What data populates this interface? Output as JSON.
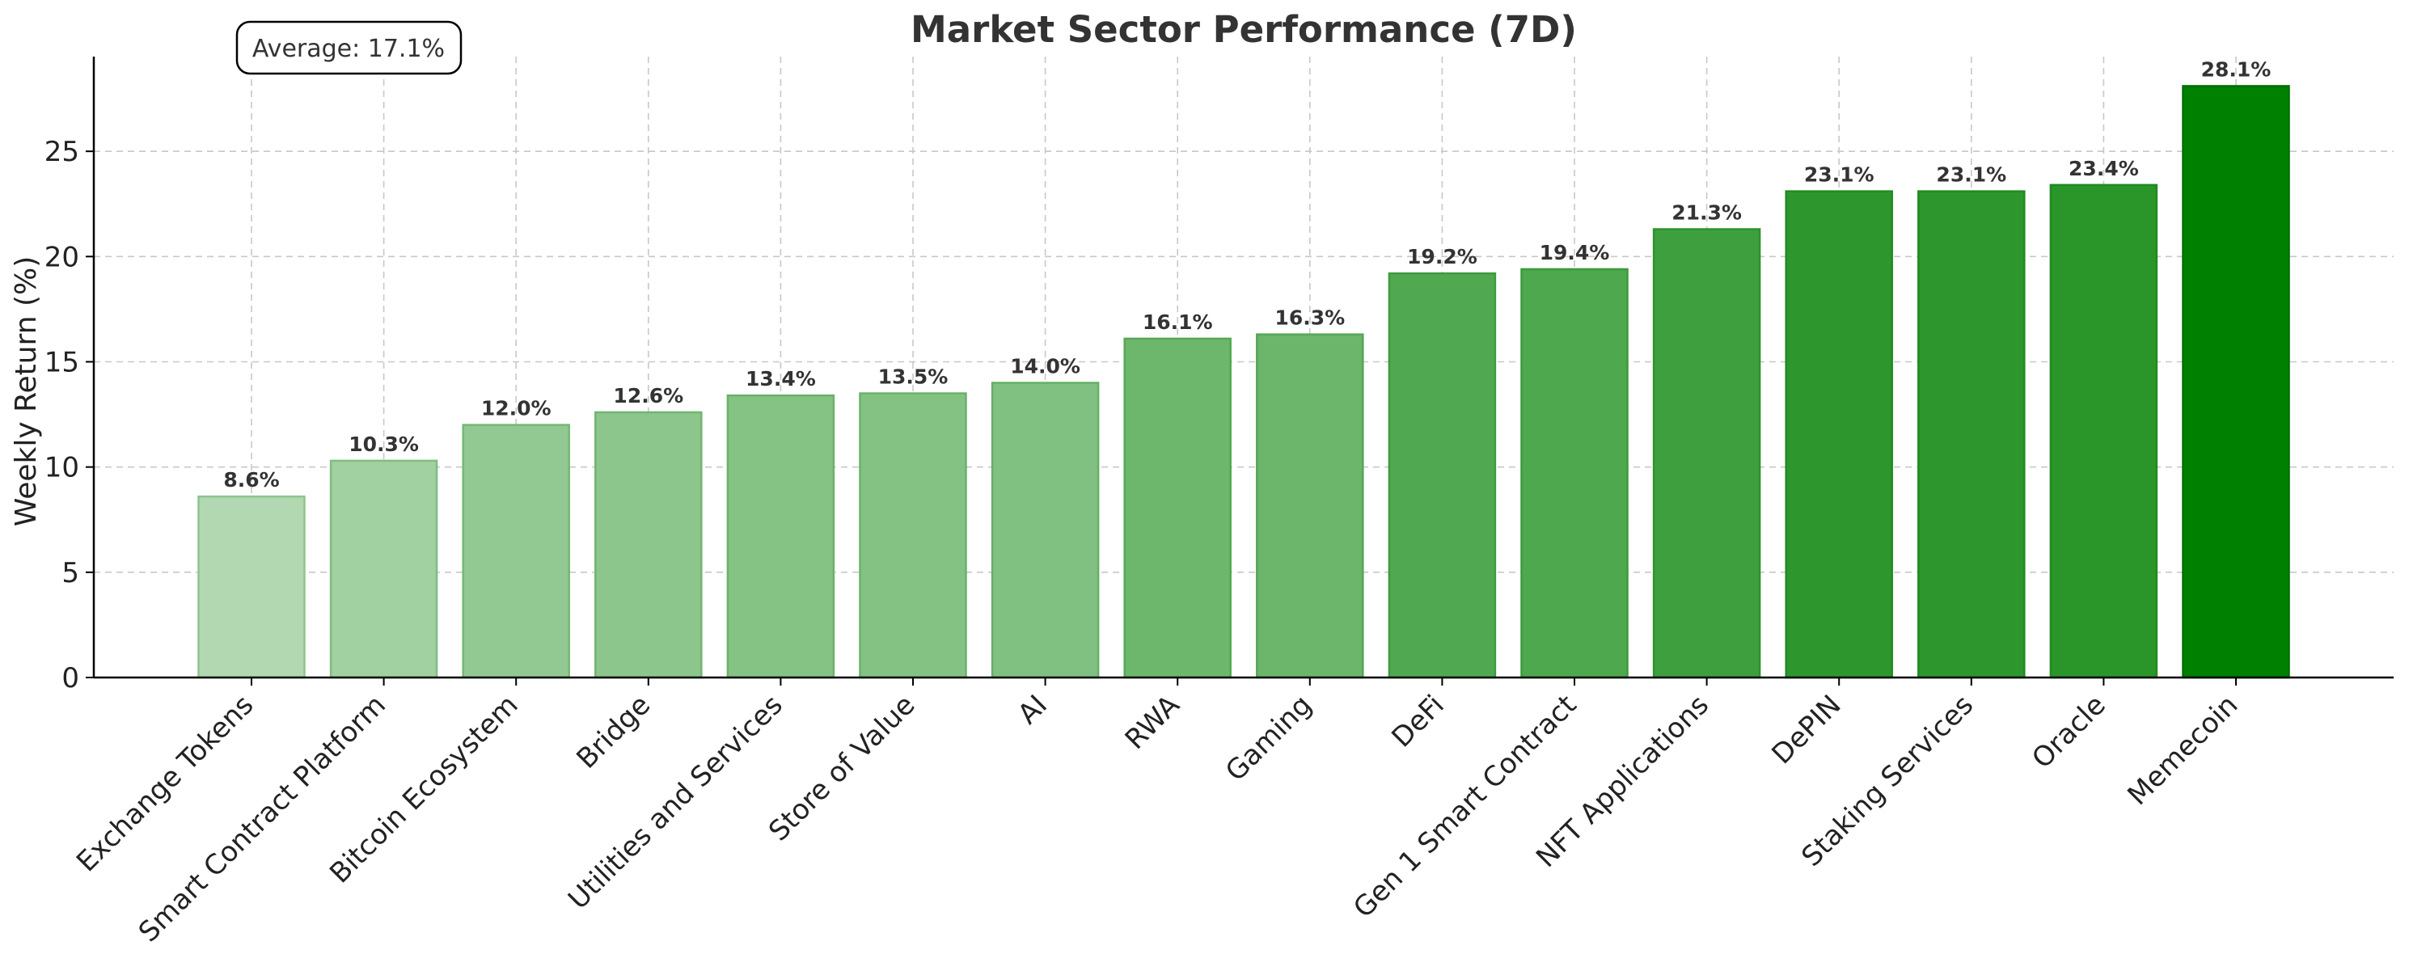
{
  "chart_data": {
    "type": "bar",
    "title": "Market Sector Performance (7D)",
    "xlabel": "",
    "ylabel": "Weekly Return (%)",
    "ylim": [
      0,
      29.5
    ],
    "yticks": [
      0,
      5,
      10,
      15,
      20,
      25
    ],
    "grid": true,
    "categories": [
      "Exchange Tokens",
      "Smart Contract Platform",
      "Bitcoin Ecosystem",
      "Bridge",
      "Utilities and Services",
      "Store of Value",
      "AI",
      "RWA",
      "Gaming",
      "DeFi",
      "Gen 1 Smart Contract",
      "NFT Applications",
      "DePIN",
      "Staking Services",
      "Oracle",
      "Memecoin"
    ],
    "values": [
      8.6,
      10.3,
      12.0,
      12.6,
      13.4,
      13.5,
      14.0,
      16.1,
      16.3,
      19.2,
      19.4,
      21.3,
      23.1,
      23.1,
      23.4,
      28.1
    ],
    "data_labels": [
      "8.6%",
      "10.3%",
      "12.0%",
      "12.6%",
      "13.4%",
      "13.5%",
      "14.0%",
      "16.1%",
      "16.3%",
      "19.2%",
      "19.4%",
      "21.3%",
      "23.1%",
      "23.1%",
      "23.4%",
      "28.1%"
    ],
    "annotation": "Average: 17.1%",
    "colors": {
      "bar_light": "#b1d8b1",
      "bar_dark": "#2a962a",
      "bar_max": "#008000",
      "edge_light": "#8fc48f",
      "edge_dark": "#1f8a1f",
      "edge_max": "#006e00"
    }
  }
}
